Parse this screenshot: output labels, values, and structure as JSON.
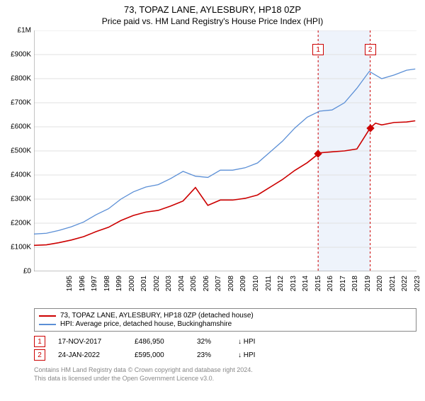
{
  "title": "73, TOPAZ LANE, AYLESBURY, HP18 0ZP",
  "subtitle": "Price paid vs. HM Land Registry's House Price Index (HPI)",
  "chart": {
    "type": "line",
    "background_color": "#ffffff",
    "grid_color": "#e0e0e0",
    "y": {
      "min": 0,
      "max": 1000000,
      "step": 100000,
      "ticks": [
        "£0",
        "£100K",
        "£200K",
        "£300K",
        "£400K",
        "£500K",
        "£600K",
        "£700K",
        "£800K",
        "£900K",
        "£1M"
      ]
    },
    "x": {
      "min": 1995,
      "max": 2025.8,
      "step": 1,
      "ticks": [
        "1995",
        "1996",
        "1997",
        "1998",
        "1999",
        "2000",
        "2001",
        "2002",
        "2003",
        "2004",
        "2005",
        "2006",
        "2007",
        "2008",
        "2009",
        "2010",
        "2011",
        "2012",
        "2013",
        "2014",
        "2015",
        "2016",
        "2017",
        "2018",
        "2019",
        "2020",
        "2021",
        "2022",
        "2023",
        "2024",
        "2025"
      ]
    },
    "highlight_band": {
      "x_start": 2017.88,
      "x_end": 2022.07,
      "color": "#eef3fb"
    },
    "series": [
      {
        "id": "hpi",
        "label": "HPI: Average price, detached house, Buckinghamshire",
        "color": "#5b8fd6",
        "width": 1.3,
        "data": [
          [
            1995,
            155000
          ],
          [
            1996,
            158000
          ],
          [
            1997,
            170000
          ],
          [
            1998,
            185000
          ],
          [
            1999,
            205000
          ],
          [
            2000,
            235000
          ],
          [
            2001,
            260000
          ],
          [
            2002,
            300000
          ],
          [
            2003,
            330000
          ],
          [
            2004,
            350000
          ],
          [
            2005,
            360000
          ],
          [
            2006,
            385000
          ],
          [
            2007,
            415000
          ],
          [
            2008,
            395000
          ],
          [
            2009,
            390000
          ],
          [
            2010,
            420000
          ],
          [
            2011,
            420000
          ],
          [
            2012,
            430000
          ],
          [
            2013,
            450000
          ],
          [
            2014,
            495000
          ],
          [
            2015,
            540000
          ],
          [
            2016,
            595000
          ],
          [
            2017,
            640000
          ],
          [
            2018,
            665000
          ],
          [
            2019,
            670000
          ],
          [
            2020,
            700000
          ],
          [
            2021,
            760000
          ],
          [
            2022,
            830000
          ],
          [
            2023,
            800000
          ],
          [
            2024,
            815000
          ],
          [
            2025,
            835000
          ],
          [
            2025.7,
            840000
          ]
        ]
      },
      {
        "id": "property",
        "label": "73, TOPAZ LANE, AYLESBURY, HP18 0ZP (detached house)",
        "color": "#cc0000",
        "width": 1.6,
        "data": [
          [
            1995,
            108000
          ],
          [
            1996,
            110000
          ],
          [
            1997,
            119000
          ],
          [
            1998,
            130000
          ],
          [
            1999,
            144000
          ],
          [
            2000,
            165000
          ],
          [
            2001,
            183000
          ],
          [
            2002,
            211000
          ],
          [
            2003,
            232000
          ],
          [
            2004,
            246000
          ],
          [
            2005,
            253000
          ],
          [
            2006,
            271000
          ],
          [
            2007,
            292000
          ],
          [
            2008,
            348000
          ],
          [
            2009,
            274000
          ],
          [
            2010,
            296000
          ],
          [
            2011,
            296000
          ],
          [
            2012,
            303000
          ],
          [
            2013,
            317000
          ],
          [
            2014,
            349000
          ],
          [
            2015,
            381000
          ],
          [
            2016,
            419000
          ],
          [
            2017,
            451000
          ],
          [
            2017.88,
            486950
          ],
          [
            2018,
            492000
          ],
          [
            2019,
            496000
          ],
          [
            2020,
            500000
          ],
          [
            2021,
            508000
          ],
          [
            2022.07,
            595000
          ],
          [
            2022.5,
            615000
          ],
          [
            2023,
            608000
          ],
          [
            2024,
            618000
          ],
          [
            2025,
            620000
          ],
          [
            2025.7,
            625000
          ]
        ]
      }
    ],
    "vlines": [
      {
        "x": 2017.88,
        "color": "#cc0000",
        "dash": "3,3"
      },
      {
        "x": 2022.07,
        "color": "#cc0000",
        "dash": "3,3"
      }
    ],
    "sale_markers": [
      {
        "n": "1",
        "x": 2017.88,
        "y": 486950,
        "box_y": 920000
      },
      {
        "n": "2",
        "x": 2022.07,
        "y": 595000,
        "box_y": 920000
      }
    ]
  },
  "legend": {
    "items": [
      {
        "color": "#cc0000",
        "label_key": "chart.series.1.label"
      },
      {
        "color": "#5b8fd6",
        "label_key": "chart.series.0.label"
      }
    ]
  },
  "sales": [
    {
      "n": "1",
      "date": "17-NOV-2017",
      "price": "£486,950",
      "pct": "32%",
      "dir": "↓ HPI"
    },
    {
      "n": "2",
      "date": "24-JAN-2022",
      "price": "£595,000",
      "pct": "23%",
      "dir": "↓ HPI"
    }
  ],
  "footer": {
    "line1": "Contains HM Land Registry data © Crown copyright and database right 2024.",
    "line2": "This data is licensed under the Open Government Licence v3.0."
  }
}
